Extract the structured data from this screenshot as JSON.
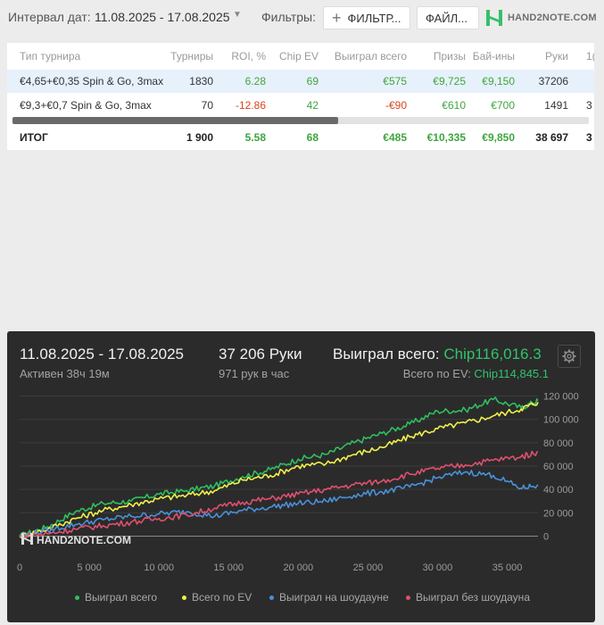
{
  "topbar": {
    "interval_label": "Интервал дат:",
    "date_range": "11.08.2025 - 17.08.2025",
    "filters_label": "Фильтры:",
    "filters_button": "ФИЛЬТР...",
    "file_button": "ФАЙЛ...",
    "logo_text": "HAND2NOTE.COM"
  },
  "table": {
    "headers": [
      "Тип турнира",
      "Турниры",
      "ROI, %",
      "Chip EV",
      "Выиграл всего",
      "Призы",
      "Бай-ины",
      "Руки",
      "1("
    ],
    "rows": [
      [
        "€4,65+€0,35 Spin & Go, 3max",
        "1830",
        "6.28",
        "69",
        "€575",
        "€9,725",
        "€9,150",
        "37206",
        ""
      ],
      [
        "€9,3+€0,7 Spin & Go, 3max",
        "70",
        "-12.86",
        "42",
        "-€90",
        "€610",
        "€700",
        "1491",
        "3"
      ]
    ],
    "total": [
      "ИТОГ",
      "1 900",
      "5.58",
      "68",
      "€485",
      "€10,335",
      "€9,850",
      "38 697",
      "3"
    ]
  },
  "summary": {
    "dates": "11.08.2025 - 17.08.2025",
    "active": "Активен 38ч 19м",
    "hands": "37 206 Руки",
    "hands_per_hour": "971 рук в час",
    "won_label": "Выиграл всего:",
    "won_value": "Chip116,016.3",
    "ev_label": "Всего по EV:",
    "ev_value": "Chip114,845.1"
  },
  "chart_data": {
    "type": "line",
    "xlabel": "",
    "ylabel": "",
    "xlim": [
      0,
      37206
    ],
    "ylim": [
      -5000,
      125000
    ],
    "x_ticks": [
      0,
      5000,
      10000,
      15000,
      20000,
      25000,
      30000,
      35000
    ],
    "x_tick_labels": [
      "0",
      "5 000",
      "10 000",
      "15 000",
      "20 000",
      "25 000",
      "30 000",
      "35 000"
    ],
    "y_ticks": [
      0,
      20000,
      40000,
      60000,
      80000,
      100000,
      120000
    ],
    "y_tick_labels": [
      "0",
      "20 000",
      "40 000",
      "60 000",
      "80 000",
      "100 000",
      "120 000"
    ],
    "x": [
      0,
      2000,
      4000,
      6000,
      8000,
      10000,
      12000,
      14000,
      16000,
      18000,
      20000,
      22000,
      24000,
      26000,
      28000,
      30000,
      32000,
      34000,
      36000,
      37206
    ],
    "series": [
      {
        "name": "Выиграл всего",
        "color": "#2fbf5f",
        "values": [
          0,
          8000,
          21000,
          28000,
          30000,
          36000,
          39000,
          43000,
          51000,
          57000,
          66000,
          70000,
          80000,
          88000,
          96000,
          107000,
          108000,
          117000,
          110000,
          116016
        ]
      },
      {
        "name": "Всего по EV",
        "color": "#f0f04a",
        "values": [
          0,
          6000,
          15000,
          22000,
          27000,
          32000,
          35000,
          39000,
          48000,
          52000,
          60000,
          62000,
          70000,
          76000,
          85000,
          92000,
          97000,
          103000,
          109000,
          114845
        ]
      },
      {
        "name": "Выиграл на шоудауне",
        "color": "#4a90d9",
        "values": [
          0,
          5000,
          10000,
          14000,
          17000,
          19000,
          21000,
          17000,
          22000,
          25000,
          28000,
          30000,
          35000,
          38000,
          42000,
          50000,
          55000,
          52000,
          41000,
          44000
        ]
      },
      {
        "name": "Выиграл без шоудауна",
        "color": "#e0506e",
        "values": [
          0,
          2000,
          6000,
          9000,
          12000,
          15000,
          18000,
          24000,
          29000,
          32000,
          36000,
          40000,
          44000,
          47000,
          53000,
          58000,
          61000,
          65000,
          68000,
          72000
        ]
      }
    ],
    "watermark": "HAND2NOTE.COM"
  }
}
